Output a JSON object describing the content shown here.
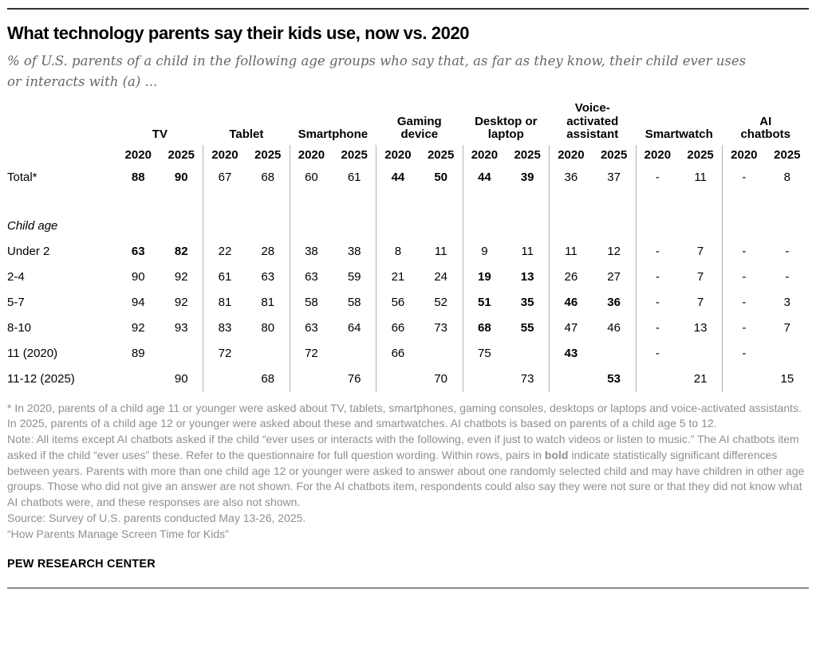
{
  "header": {
    "title": "What technology parents say their kids use, now vs. 2020",
    "subtitle": "% of U.S. parents of a child in the following age groups who say that, as far as they know, their child ever uses or interacts with (a) ..."
  },
  "chart_data": {
    "type": "table",
    "title": "What technology parents say their kids use, now vs. 2020",
    "units": "% of U.S. parents",
    "column_groups": [
      {
        "label": "TV",
        "years": [
          "2020",
          "2025"
        ]
      },
      {
        "label": "Tablet",
        "years": [
          "2020",
          "2025"
        ]
      },
      {
        "label": "Smartphone",
        "years": [
          "2020",
          "2025"
        ]
      },
      {
        "label": "Gaming\ndevice",
        "years": [
          "2020",
          "2025"
        ]
      },
      {
        "label": "Desktop or\nlaptop",
        "years": [
          "2020",
          "2025"
        ]
      },
      {
        "label": "Voice-\nactivated\nassistant",
        "years": [
          "2020",
          "2025"
        ]
      },
      {
        "label": "Smartwatch",
        "years": [
          "2020",
          "2025"
        ]
      },
      {
        "label": "AI\nchatbots",
        "years": [
          "2020",
          "2025"
        ]
      }
    ],
    "bold_meaning": "Within rows, pairs in bold indicate statistically significant differences between years",
    "rows": [
      {
        "label": "Total*",
        "type": "data",
        "cells": [
          {
            "v": "88",
            "b": true
          },
          {
            "v": "90",
            "b": true
          },
          {
            "v": "67"
          },
          {
            "v": "68"
          },
          {
            "v": "60"
          },
          {
            "v": "61"
          },
          {
            "v": "44",
            "b": true
          },
          {
            "v": "50",
            "b": true
          },
          {
            "v": "44",
            "b": true
          },
          {
            "v": "39",
            "b": true
          },
          {
            "v": "36"
          },
          {
            "v": "37"
          },
          {
            "v": "-"
          },
          {
            "v": "11"
          },
          {
            "v": "-"
          },
          {
            "v": "8"
          }
        ]
      },
      {
        "label": "",
        "type": "spacer",
        "cells": [
          {
            "v": ""
          },
          {
            "v": ""
          },
          {
            "v": ""
          },
          {
            "v": ""
          },
          {
            "v": ""
          },
          {
            "v": ""
          },
          {
            "v": ""
          },
          {
            "v": ""
          },
          {
            "v": ""
          },
          {
            "v": ""
          },
          {
            "v": ""
          },
          {
            "v": ""
          },
          {
            "v": ""
          },
          {
            "v": ""
          },
          {
            "v": ""
          },
          {
            "v": ""
          }
        ]
      },
      {
        "label": "Child age",
        "type": "section",
        "cells": [
          {
            "v": ""
          },
          {
            "v": ""
          },
          {
            "v": ""
          },
          {
            "v": ""
          },
          {
            "v": ""
          },
          {
            "v": ""
          },
          {
            "v": ""
          },
          {
            "v": ""
          },
          {
            "v": ""
          },
          {
            "v": ""
          },
          {
            "v": ""
          },
          {
            "v": ""
          },
          {
            "v": ""
          },
          {
            "v": ""
          },
          {
            "v": ""
          },
          {
            "v": ""
          }
        ]
      },
      {
        "label": "Under 2",
        "type": "data",
        "cells": [
          {
            "v": "63",
            "b": true
          },
          {
            "v": "82",
            "b": true
          },
          {
            "v": "22"
          },
          {
            "v": "28"
          },
          {
            "v": "38"
          },
          {
            "v": "38"
          },
          {
            "v": "8"
          },
          {
            "v": "11"
          },
          {
            "v": "9"
          },
          {
            "v": "11"
          },
          {
            "v": "11"
          },
          {
            "v": "12"
          },
          {
            "v": "-"
          },
          {
            "v": "7"
          },
          {
            "v": "-"
          },
          {
            "v": "-"
          }
        ]
      },
      {
        "label": "2-4",
        "type": "data",
        "cells": [
          {
            "v": "90"
          },
          {
            "v": "92"
          },
          {
            "v": "61"
          },
          {
            "v": "63"
          },
          {
            "v": "63"
          },
          {
            "v": "59"
          },
          {
            "v": "21"
          },
          {
            "v": "24"
          },
          {
            "v": "19",
            "b": true
          },
          {
            "v": "13",
            "b": true
          },
          {
            "v": "26"
          },
          {
            "v": "27"
          },
          {
            "v": "-"
          },
          {
            "v": "7"
          },
          {
            "v": "-"
          },
          {
            "v": "-"
          }
        ]
      },
      {
        "label": "5-7",
        "type": "data",
        "cells": [
          {
            "v": "94"
          },
          {
            "v": "92"
          },
          {
            "v": "81"
          },
          {
            "v": "81"
          },
          {
            "v": "58"
          },
          {
            "v": "58"
          },
          {
            "v": "56"
          },
          {
            "v": "52"
          },
          {
            "v": "51",
            "b": true
          },
          {
            "v": "35",
            "b": true
          },
          {
            "v": "46",
            "b": true
          },
          {
            "v": "36",
            "b": true
          },
          {
            "v": "-"
          },
          {
            "v": "7"
          },
          {
            "v": "-"
          },
          {
            "v": "3"
          }
        ]
      },
      {
        "label": "8-10",
        "type": "data",
        "cells": [
          {
            "v": "92"
          },
          {
            "v": "93"
          },
          {
            "v": "83"
          },
          {
            "v": "80"
          },
          {
            "v": "63"
          },
          {
            "v": "64"
          },
          {
            "v": "66"
          },
          {
            "v": "73"
          },
          {
            "v": "68",
            "b": true
          },
          {
            "v": "55",
            "b": true
          },
          {
            "v": "47"
          },
          {
            "v": "46"
          },
          {
            "v": "-"
          },
          {
            "v": "13"
          },
          {
            "v": "-"
          },
          {
            "v": "7"
          }
        ]
      },
      {
        "label": "11 (2020)",
        "type": "data",
        "cells": [
          {
            "v": "89"
          },
          {
            "v": ""
          },
          {
            "v": "72"
          },
          {
            "v": ""
          },
          {
            "v": "72"
          },
          {
            "v": ""
          },
          {
            "v": "66"
          },
          {
            "v": ""
          },
          {
            "v": "75"
          },
          {
            "v": ""
          },
          {
            "v": "43",
            "b": true
          },
          {
            "v": ""
          },
          {
            "v": "-"
          },
          {
            "v": ""
          },
          {
            "v": "-"
          },
          {
            "v": ""
          }
        ]
      },
      {
        "label": "11-12 (2025)",
        "type": "data",
        "cells": [
          {
            "v": ""
          },
          {
            "v": "90"
          },
          {
            "v": ""
          },
          {
            "v": "68"
          },
          {
            "v": ""
          },
          {
            "v": "76"
          },
          {
            "v": ""
          },
          {
            "v": "70"
          },
          {
            "v": ""
          },
          {
            "v": "73"
          },
          {
            "v": ""
          },
          {
            "v": "53",
            "b": true
          },
          {
            "v": ""
          },
          {
            "v": "21"
          },
          {
            "v": ""
          },
          {
            "v": "15"
          }
        ]
      }
    ]
  },
  "notes": {
    "asterisk": "* In 2020, parents of a child age 11 or younger were asked about TV, tablets, smartphones, gaming consoles, desktops or laptops and voice-activated assistants. In 2025, parents of a child age 12 or younger were asked about these and smartwatches. AI chatbots is based on parents of a child age 5 to 12.",
    "note_pre": "Note: All items except AI chatbots asked if the child “ever uses or interacts with the following, even if just to watch videos or listen to music.” The AI chatbots item asked if the child “ever uses” these. Refer to the questionnaire for full question wording. Within rows, pairs in ",
    "note_bold": "bold",
    "note_post": " indicate statistically significant differences between years. Parents with more than one child age 12 or younger were asked to answer about one randomly selected child and may have children in other age groups. Those who did not give an answer are not shown. For the AI chatbots item, respondents could also say they were not sure or that they did not know what AI chatbots were, and these responses are also not shown.",
    "source": "Source: Survey of U.S. parents conducted May 13-26, 2025.",
    "report_title": "“How Parents Manage Screen Time for Kids”"
  },
  "footer": {
    "brand": "PEW RESEARCH CENTER"
  },
  "colors": {
    "rule_top": "#333333",
    "rule_bottom": "#8a8a8a",
    "divider": "#b3b3b3",
    "subtitle_gray": "#666666",
    "note_gray": "#8f8f8f"
  }
}
